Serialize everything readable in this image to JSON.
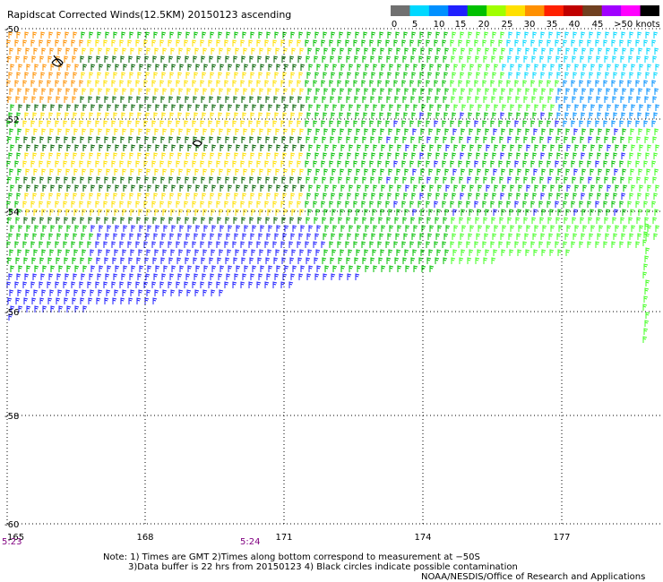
{
  "title": "Rapidscat Corrected Winds(12.5KM) 20150123 ascending",
  "legend": {
    "ticks": [
      "0",
      "5",
      "10",
      "15",
      "20",
      "25",
      "30",
      "35",
      "40",
      "45",
      ">50 knots"
    ],
    "colors": [
      "#707070",
      "#00d8ff",
      "#0090ff",
      "#2020ff",
      "#00c000",
      "#a0ff00",
      "#ffe000",
      "#ff9000",
      "#ff2000",
      "#c00000",
      "#704020",
      "#a000ff",
      "#ff00ff",
      "#000000"
    ]
  },
  "axes": {
    "lat_labels": [
      "-50",
      "-52",
      "-54",
      "-56",
      "-58",
      "-60"
    ],
    "lon_labels": [
      "165",
      "168",
      "171",
      "174",
      "177"
    ]
  },
  "times": [
    "5:23",
    "5:24"
  ],
  "notes": {
    "line1": "Note: 1) Times are GMT 2)Times along bottom correspond to measurement at −50S",
    "line2": "3)Data buffer is 22 hrs from 20150123 4) Black circles indicate possible contamination",
    "credit": "NOAA/NESDIS/Office of Research and Applications"
  },
  "wind_colors": {
    "orange": "#ff9000",
    "yellow": "#ffe000",
    "green": "#00c000",
    "lightgreen": "#40ff20",
    "darkgreen": "#006000",
    "blue": "#2020ff",
    "cyan": "#00d8ff",
    "lightblue": "#0090ff",
    "black": "#000000"
  }
}
